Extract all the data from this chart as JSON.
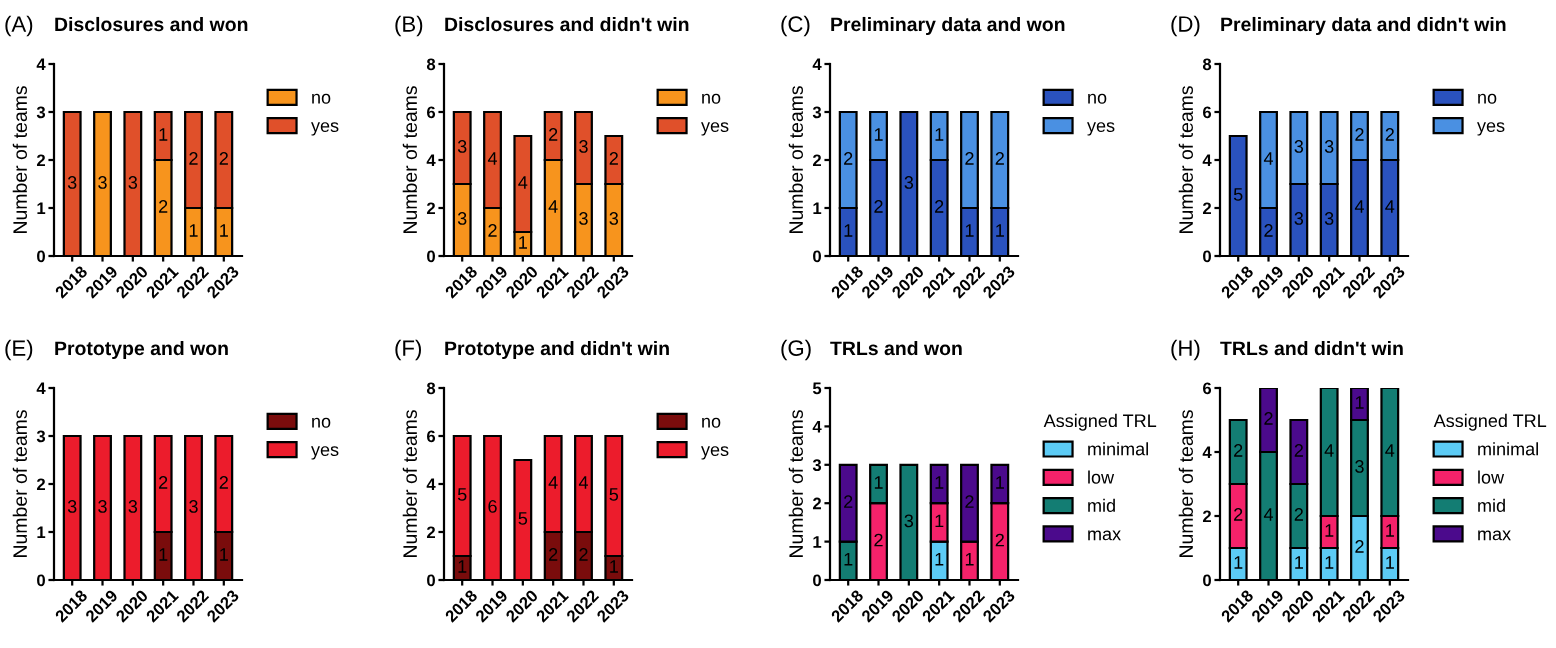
{
  "chart_data": [
    {
      "type": "bar",
      "stacked": true,
      "title": "Disclosures and won",
      "annotations": [
        "(A)"
      ],
      "ylabel": "Number of teams",
      "categories": [
        "2018",
        "2019",
        "2020",
        "2021",
        "2022",
        "2023"
      ],
      "ylim": [
        0,
        4
      ],
      "yticks": [
        0,
        1,
        2,
        3,
        4
      ],
      "legend": "right",
      "series": [
        {
          "name": "no",
          "color": "#f7941d",
          "values": [
            0,
            3,
            0,
            2,
            1,
            1
          ],
          "value_labels": [
            null,
            "3",
            null,
            "2",
            "1",
            "1"
          ]
        },
        {
          "name": "yes",
          "color": "#e0502a",
          "values": [
            3,
            0,
            3,
            1,
            2,
            2
          ],
          "value_labels": [
            "3",
            null,
            "3",
            "1",
            "2",
            "2"
          ]
        }
      ]
    },
    {
      "type": "bar",
      "stacked": true,
      "title": "Disclosures and didn't win",
      "annotations": [
        "(B)"
      ],
      "ylabel": "Number of teams",
      "categories": [
        "2018",
        "2019",
        "2020",
        "2021",
        "2022",
        "2023"
      ],
      "ylim": [
        0,
        8
      ],
      "yticks": [
        0,
        2,
        4,
        6,
        8
      ],
      "legend": "right",
      "series": [
        {
          "name": "no",
          "color": "#f7941d",
          "values": [
            3,
            2,
            1,
            4,
            3,
            3
          ],
          "value_labels": [
            "3",
            "2",
            "1",
            "4",
            "3",
            "3"
          ]
        },
        {
          "name": "yes",
          "color": "#e0502a",
          "values": [
            3,
            4,
            4,
            2,
            3,
            2
          ],
          "value_labels": [
            "3",
            "4",
            "4",
            "2",
            "3",
            "2"
          ]
        }
      ]
    },
    {
      "type": "bar",
      "stacked": true,
      "title": "Preliminary data and won",
      "annotations": [
        "(C)"
      ],
      "ylabel": "Number of teams",
      "categories": [
        "2018",
        "2019",
        "2020",
        "2021",
        "2022",
        "2023"
      ],
      "ylim": [
        0,
        4
      ],
      "yticks": [
        0,
        1,
        2,
        3,
        4
      ],
      "legend": "right",
      "series": [
        {
          "name": "no",
          "color": "#2a52be",
          "values": [
            1,
            2,
            3,
            2,
            1,
            1
          ],
          "value_labels": [
            "1",
            "2",
            "3",
            "2",
            "1",
            "1"
          ]
        },
        {
          "name": "yes",
          "color": "#4a90e2",
          "values": [
            2,
            1,
            0,
            1,
            2,
            2
          ],
          "value_labels": [
            "2",
            "1",
            null,
            "1",
            "2",
            "2"
          ]
        }
      ]
    },
    {
      "type": "bar",
      "stacked": true,
      "title": "Preliminary data and didn't win",
      "annotations": [
        "(D)"
      ],
      "ylabel": "Number of teams",
      "categories": [
        "2018",
        "2019",
        "2020",
        "2021",
        "2022",
        "2023"
      ],
      "ylim": [
        0,
        8
      ],
      "yticks": [
        0,
        2,
        4,
        6,
        8
      ],
      "legend": "right",
      "series": [
        {
          "name": "no",
          "color": "#2a52be",
          "values": [
            5,
            2,
            3,
            3,
            4,
            4
          ],
          "value_labels": [
            "5",
            "2",
            "3",
            "3",
            "4",
            "4"
          ]
        },
        {
          "name": "yes",
          "color": "#4a90e2",
          "values": [
            0,
            4,
            3,
            3,
            2,
            2
          ],
          "value_labels": [
            null,
            "4",
            "3",
            "3",
            "2",
            "2"
          ]
        }
      ]
    },
    {
      "type": "bar",
      "stacked": true,
      "title": "Prototype and won",
      "annotations": [
        "(E)"
      ],
      "ylabel": "Number of teams",
      "categories": [
        "2018",
        "2019",
        "2020",
        "2021",
        "2022",
        "2023"
      ],
      "ylim": [
        0,
        4
      ],
      "yticks": [
        0,
        1,
        2,
        3,
        4
      ],
      "legend": "right",
      "series": [
        {
          "name": "no",
          "color": "#7a0c0c",
          "values": [
            0,
            0,
            0,
            1,
            0,
            1
          ],
          "value_labels": [
            null,
            null,
            null,
            "1",
            null,
            "1"
          ]
        },
        {
          "name": "yes",
          "color": "#ec1c2c",
          "values": [
            3,
            3,
            3,
            2,
            3,
            2
          ],
          "value_labels": [
            "3",
            "3",
            "3",
            "2",
            "3",
            "2"
          ]
        }
      ]
    },
    {
      "type": "bar",
      "stacked": true,
      "title": "Prototype and didn't win",
      "annotations": [
        "(F)"
      ],
      "ylabel": "Number of teams",
      "categories": [
        "2018",
        "2019",
        "2020",
        "2021",
        "2022",
        "2023"
      ],
      "ylim": [
        0,
        8
      ],
      "yticks": [
        0,
        2,
        4,
        6,
        8
      ],
      "legend": "right",
      "series": [
        {
          "name": "no",
          "color": "#7a0c0c",
          "values": [
            1,
            0,
            0,
            2,
            2,
            1
          ],
          "value_labels": [
            "1",
            null,
            null,
            "2",
            "2",
            "1"
          ]
        },
        {
          "name": "yes",
          "color": "#ec1c2c",
          "values": [
            5,
            6,
            5,
            4,
            4,
            5
          ],
          "value_labels": [
            "5",
            "6",
            "5",
            "4",
            "4",
            "5"
          ]
        }
      ]
    },
    {
      "type": "bar",
      "stacked": true,
      "title": "TRLs and won",
      "annotations": [
        "(G)"
      ],
      "ylabel": "Number of teams",
      "legend_title": "Assigned TRL",
      "categories": [
        "2018",
        "2019",
        "2020",
        "2021",
        "2022",
        "2023"
      ],
      "ylim": [
        0,
        5
      ],
      "yticks": [
        0,
        1,
        2,
        3,
        4,
        5
      ],
      "legend": "right",
      "series": [
        {
          "name": "minimal",
          "color": "#5ccbf5",
          "values": [
            0,
            0,
            0,
            1,
            0,
            0
          ],
          "value_labels": [
            null,
            null,
            null,
            "1",
            null,
            null
          ]
        },
        {
          "name": "low",
          "color": "#f5226a",
          "values": [
            0,
            2,
            0,
            1,
            1,
            2
          ],
          "value_labels": [
            null,
            "2",
            null,
            "1",
            "1",
            "2"
          ]
        },
        {
          "name": "mid",
          "color": "#137d73",
          "values": [
            1,
            1,
            3,
            0,
            0,
            0
          ],
          "value_labels": [
            "1",
            "1",
            "3",
            null,
            null,
            null
          ]
        },
        {
          "name": "max",
          "color": "#4b0a8c",
          "values": [
            2,
            0,
            0,
            1,
            2,
            1
          ],
          "value_labels": [
            "2",
            null,
            null,
            "1",
            "2",
            "1"
          ]
        }
      ]
    },
    {
      "type": "bar",
      "stacked": true,
      "title": "TRLs and didn't win",
      "annotations": [
        "(H)"
      ],
      "ylabel": "Number of teams",
      "legend_title": "Assigned TRL",
      "categories": [
        "2018",
        "2019",
        "2020",
        "2021",
        "2022",
        "2023"
      ],
      "ylim": [
        0,
        6
      ],
      "yticks": [
        0,
        2,
        4,
        6
      ],
      "legend": "right",
      "series": [
        {
          "name": "minimal",
          "color": "#5ccbf5",
          "values": [
            1,
            0,
            1,
            1,
            2,
            1
          ],
          "value_labels": [
            "1",
            null,
            "1",
            "1",
            "2",
            "1"
          ]
        },
        {
          "name": "low",
          "color": "#f5226a",
          "values": [
            2,
            0,
            0,
            1,
            0,
            1
          ],
          "value_labels": [
            "2",
            null,
            null,
            "1",
            null,
            "1"
          ]
        },
        {
          "name": "mid",
          "color": "#137d73",
          "values": [
            2,
            4,
            2,
            4,
            3,
            4
          ],
          "value_labels": [
            "2",
            "4",
            "2",
            "4",
            "3",
            "4"
          ]
        },
        {
          "name": "max",
          "color": "#4b0a8c",
          "values": [
            0,
            2,
            2,
            0,
            1,
            0
          ],
          "value_labels": [
            null,
            "2",
            "2",
            null,
            "1",
            null
          ]
        }
      ]
    }
  ]
}
